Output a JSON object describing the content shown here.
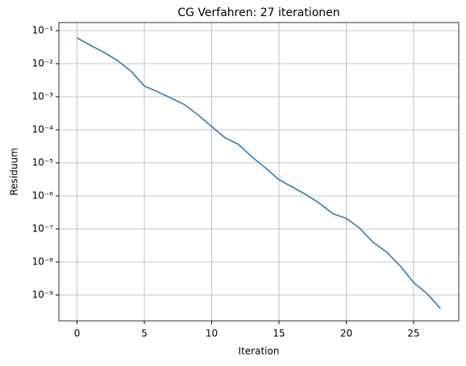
{
  "chart_data": {
    "type": "line",
    "title": "CG Verfahren: 27 iterationen",
    "xlabel": "Iteration",
    "ylabel": "Residuum",
    "x": [
      0,
      1,
      2,
      3,
      4,
      5,
      6,
      7,
      8,
      9,
      10,
      11,
      12,
      13,
      14,
      15,
      16,
      17,
      18,
      19,
      20,
      21,
      22,
      23,
      24,
      25,
      26,
      27
    ],
    "series": [
      {
        "name": "Residuum",
        "color": "#1f77b4",
        "values": [
          0.06,
          0.036,
          0.022,
          0.0125,
          0.006,
          0.0021,
          0.0014,
          0.0009,
          0.00057,
          0.00028,
          0.000125,
          5.7e-05,
          3.6e-05,
          1.5e-05,
          7e-06,
          3.1e-06,
          1.85e-06,
          1.1e-06,
          6e-07,
          2.9e-07,
          2.1e-07,
          1.05e-07,
          3.9e-08,
          2e-08,
          7.6e-09,
          2.4e-09,
          1.1e-09,
          3.9e-10
        ]
      }
    ],
    "xlim": [
      -1.35,
      28.35
    ],
    "xticks": [
      0,
      5,
      10,
      15,
      20,
      25
    ],
    "ylim": [
      1.66e-10,
      0.175
    ],
    "yscale": "log",
    "yticks": [
      {
        "value": 0.1,
        "label": "10⁻¹"
      },
      {
        "value": 0.01,
        "label": "10⁻²"
      },
      {
        "value": 0.001,
        "label": "10⁻³"
      },
      {
        "value": 0.0001,
        "label": "10⁻⁴"
      },
      {
        "value": 1e-05,
        "label": "10⁻⁵"
      },
      {
        "value": 1e-06,
        "label": "10⁻⁶"
      },
      {
        "value": 1e-07,
        "label": "10⁻⁷"
      },
      {
        "value": 1e-08,
        "label": "10⁻⁸"
      },
      {
        "value": 1e-09,
        "label": "10⁻⁹"
      }
    ],
    "grid": true
  }
}
